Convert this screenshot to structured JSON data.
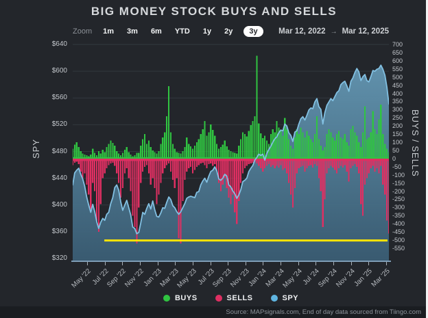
{
  "header": {
    "title": "BIG MONEY STOCK BUYS AND SELLS"
  },
  "toolbar": {
    "zoom_label": "Zoom",
    "ranges": [
      "1m",
      "3m",
      "6m",
      "YTD",
      "1y",
      "2y",
      "3y"
    ],
    "active_range": "3y",
    "date_from": "Mar 12, 2022",
    "date_to": "Mar 12, 2025",
    "arrow": "→"
  },
  "legend": [
    {
      "label": "BUYS",
      "color": "#30c441"
    },
    {
      "label": "SELLS",
      "color": "#df2f62"
    },
    {
      "label": "SPY",
      "color": "#5fb4e0"
    }
  ],
  "footer": {
    "source": "Source: MAPsignals.com, End of day data sourced from Tiingo.com"
  },
  "chart_data": {
    "type": "combo",
    "title": "BIG MONEY STOCK BUYS AND SELLS",
    "sampling": "weekly approximation of daily data, Mar 12 2022 - Mar 12 2025",
    "grid": "horizontal only",
    "left_axis": {
      "title": "SPY",
      "min": 320,
      "max": 640,
      "tick_values": [
        640,
        600,
        560,
        520,
        480,
        440,
        400,
        360,
        320
      ],
      "tick_labels": [
        "$640",
        "$600",
        "$560",
        "$520",
        "$480",
        "$440",
        "$400",
        "$360",
        "$320"
      ]
    },
    "right_axis": {
      "title": "BUYS / SELLS",
      "min": -550,
      "max": 700,
      "tick_values": [
        700,
        650,
        600,
        550,
        500,
        450,
        400,
        350,
        300,
        250,
        200,
        150,
        100,
        50,
        0,
        -50,
        -100,
        -150,
        -200,
        -250,
        -300,
        -350,
        -400,
        -450,
        -500,
        -550
      ],
      "tick_labels": [
        "700",
        "650",
        "600",
        "550",
        "500",
        "450",
        "400",
        "350",
        "300",
        "250",
        "200",
        "150",
        "100",
        "50",
        "0",
        "-50",
        "-100",
        "-150",
        "-200",
        "-250",
        "-300",
        "-350",
        "-400",
        "-450",
        "-500",
        "-550"
      ]
    },
    "x_tick_labels": [
      "May '22",
      "Jul '22",
      "Sep '22",
      "Nov '22",
      "Jan '23",
      "Mar '23",
      "May '23",
      "Jul '23",
      "Sep '23",
      "Nov '23",
      "Jan '24",
      "Mar '24",
      "May '24",
      "Jul '24",
      "Sep '24",
      "Nov '24",
      "Jan '25",
      "Mar '25"
    ],
    "support_line": {
      "color": "#ffe404",
      "spy_value": 347,
      "start_fraction": 0.1
    },
    "series": [
      {
        "name": "BUYS",
        "type": "bar",
        "axis": "right",
        "color": "#30c441",
        "values": [
          60,
          85,
          100,
          70,
          45,
          30,
          25,
          20,
          15,
          25,
          60,
          35,
          20,
          45,
          30,
          55,
          40,
          70,
          90,
          110,
          95,
          80,
          45,
          30,
          20,
          35,
          55,
          70,
          40,
          25,
          15,
          20,
          35,
          35,
          80,
          120,
          150,
          90,
          110,
          70,
          50,
          40,
          30,
          45,
          90,
          130,
          160,
          260,
          445,
          160,
          90,
          60,
          40,
          35,
          30,
          45,
          70,
          130,
          90,
          75,
          60,
          80,
          100,
          120,
          150,
          180,
          230,
          140,
          160,
          210,
          175,
          140,
          90,
          60,
          70,
          85,
          110,
          75,
          55,
          45,
          40,
          35,
          30,
          80,
          120,
          160,
          150,
          135,
          170,
          205,
          230,
          260,
          630,
          215,
          155,
          125,
          140,
          110,
          90,
          150,
          180,
          160,
          230,
          190,
          170,
          140,
          250,
          180,
          120,
          80,
          60,
          130,
          180,
          150,
          190,
          160,
          130,
          170,
          140,
          120,
          100,
          150,
          260,
          120,
          80,
          50,
          70,
          150,
          180,
          160,
          130,
          110,
          150,
          170,
          130,
          120,
          150,
          100,
          80,
          180,
          200,
          160,
          140,
          100,
          70,
          160,
          320,
          120,
          130,
          160,
          290,
          180,
          150,
          240,
          330,
          150,
          90,
          60,
          40
        ]
      },
      {
        "name": "SELLS",
        "type": "bar",
        "axis": "right",
        "color": "#df2f62",
        "values": [
          -40,
          -25,
          -20,
          -35,
          -80,
          -120,
          -90,
          -160,
          -220,
          -310,
          -150,
          -200,
          -380,
          -450,
          -280,
          -120,
          -90,
          -60,
          -40,
          -30,
          -25,
          -45,
          -90,
          -150,
          -240,
          -180,
          -90,
          -60,
          -120,
          -200,
          -350,
          -420,
          -520,
          -300,
          -150,
          -80,
          -50,
          -40,
          -90,
          -160,
          -120,
          -180,
          -280,
          -220,
          -150,
          -90,
          -60,
          -40,
          -30,
          -80,
          -130,
          -180,
          -120,
          -490,
          -520,
          -260,
          -130,
          -80,
          -60,
          -50,
          -90,
          -70,
          -50,
          -40,
          -30,
          -25,
          -40,
          -60,
          -35,
          -30,
          -45,
          -35,
          -80,
          -150,
          -200,
          -160,
          -120,
          -180,
          -240,
          -280,
          -220,
          -330,
          -400,
          -260,
          -150,
          -90,
          -60,
          -45,
          -35,
          -30,
          -25,
          -20,
          -30,
          -45,
          -60,
          -80,
          -60,
          -45,
          -35,
          -50,
          -40,
          -60,
          -45,
          -55,
          -40,
          -70,
          -60,
          -90,
          -150,
          -220,
          -300,
          -180,
          -90,
          -60,
          -50,
          -45,
          -80,
          -60,
          -45,
          -40,
          -55,
          -35,
          -45,
          -120,
          -200,
          -420,
          -250,
          -90,
          -60,
          -45,
          -55,
          -70,
          -90,
          -60,
          -45,
          -55,
          -40,
          -80,
          -140,
          -60,
          -45,
          -35,
          -50,
          -90,
          -280,
          -350,
          -160,
          -120,
          -90,
          -60,
          -45,
          -80,
          -60,
          -90,
          -45,
          -160,
          -220,
          -380,
          -460
        ]
      },
      {
        "name": "SPY",
        "type": "area",
        "axis": "left",
        "line_color": "#82c0e2",
        "fill_top": "#6497b3",
        "fill_bottom": "#3a5d74",
        "values": [
          430,
          448,
          452,
          455,
          446,
          439,
          428,
          412,
          400,
          389,
          401,
          390,
          375,
          365,
          374,
          380,
          377,
          386,
          389,
          402,
          411,
          426,
          430,
          422,
          405,
          392,
          400,
          407,
          396,
          385,
          367,
          365,
          357,
          359,
          373,
          389,
          386,
          395,
          402,
          394,
          406,
          393,
          383,
          382,
          388,
          396,
          395,
          404,
          412,
          408,
          399,
          396,
          390,
          386,
          390,
          396,
          402,
          410,
          412,
          413,
          412,
          411,
          419,
          420,
          430,
          436,
          440,
          434,
          443,
          450,
          452,
          457,
          451,
          439,
          437,
          440,
          446,
          443,
          430,
          427,
          421,
          417,
          410,
          415,
          423,
          435,
          437,
          440,
          450,
          455,
          459,
          467,
          471,
          476,
          474,
          476,
          467,
          477,
          483,
          488,
          494,
          499,
          502,
          508,
          512,
          511,
          521,
          518,
          508,
          504,
          495,
          509,
          511,
          521,
          529,
          532,
          527,
          534,
          542,
          545,
          544,
          554,
          559,
          547,
          543,
          521,
          538,
          549,
          554,
          559,
          556,
          562,
          568,
          571,
          580,
          583,
          585,
          578,
          570,
          585,
          590,
          598,
          604,
          599,
          586,
          592,
          595,
          586,
          584,
          592,
          601,
          600,
          603,
          604,
          609,
          603,
          594,
          576,
          551
        ]
      }
    ]
  }
}
